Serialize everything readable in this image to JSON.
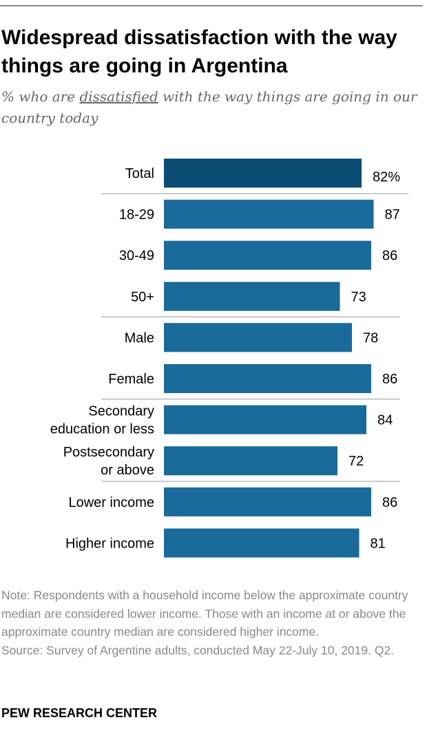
{
  "title": "Widespread dissatisfaction with the way things are going in Argentina",
  "subtitle": {
    "before": "% who are ",
    "emphasis": "dissatisfied",
    "after": " with the way things are going in our country today"
  },
  "notes": {
    "note": "Note: Respondents with a household income below the approximate country median are considered lower income. Those with an income at or above the approximate country median are considered higher income.",
    "source": "Source: Survey of Argentine adults, conducted May 22-July 10, 2019. Q2."
  },
  "brand": "PEW RESEARCH CENTER",
  "colors": {
    "total_bar": "#0b4c72",
    "bar": "#1a6a9a",
    "divider": "#999999"
  },
  "chart_data": {
    "type": "bar",
    "orientation": "horizontal",
    "categories": [
      "Total",
      "18-29",
      "30-49",
      "50+",
      "Male",
      "Female",
      "Secondary education or less",
      "Postsecondary or above",
      "Lower income",
      "Higher income"
    ],
    "category_lines": [
      [
        "Total"
      ],
      [
        "18-29"
      ],
      [
        "30-49"
      ],
      [
        "50+"
      ],
      [
        "Male"
      ],
      [
        "Female"
      ],
      [
        "Secondary",
        "education or less"
      ],
      [
        "Postsecondary",
        "or above"
      ],
      [
        "Lower income"
      ],
      [
        "Higher income"
      ]
    ],
    "values": [
      82,
      87,
      86,
      73,
      78,
      86,
      84,
      72,
      86,
      81
    ],
    "value_labels": [
      "82%",
      "87",
      "86",
      "73",
      "78",
      "86",
      "84",
      "72",
      "86",
      "81"
    ],
    "groups": [
      [
        0
      ],
      [
        1,
        2,
        3
      ],
      [
        4,
        5
      ],
      [
        6,
        7
      ],
      [
        8,
        9
      ]
    ],
    "xlim": [
      0,
      100
    ],
    "grid": false,
    "legend": "none"
  }
}
